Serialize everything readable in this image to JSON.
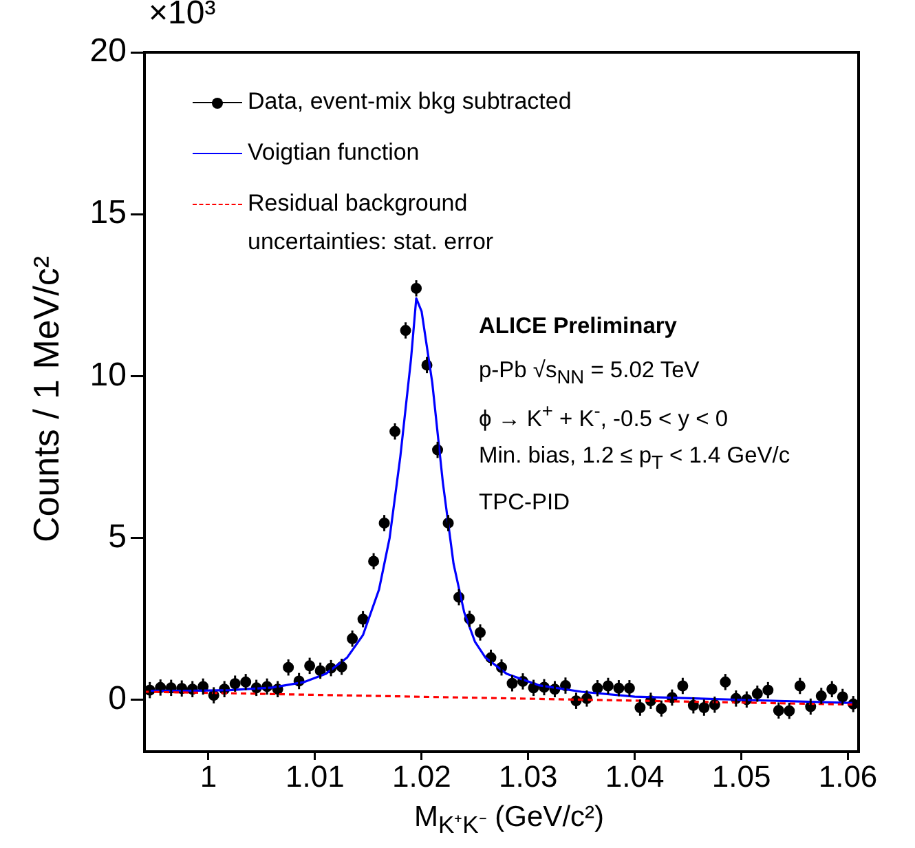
{
  "chart_data": {
    "type": "scatter",
    "xlabel": "M$_{K⁺K⁻}$ (GeV/c²)",
    "ylabel": "Counts / 1 MeV/c²",
    "xlim": [
      0.994,
      1.061
    ],
    "xticks": [
      1,
      1.01,
      1.02,
      1.03,
      1.04,
      1.05,
      1.06
    ],
    "ylim": [
      -1.6,
      20
    ],
    "yticks": [
      0,
      5,
      10,
      15,
      20
    ],
    "grid": false,
    "legend": "top left",
    "annotations": [
      "×10³",
      "uncertainties: stat. error",
      "ALICE Preliminary",
      "p-Pb √s$_{NN}$ = 5.02 TeV",
      "ϕ → K$^{+}$ + K$^{-}$, -0.5 < y < 0",
      "Min. bias, 1.2 ≤ p$_{T}$ < 1.4 GeV/c",
      "TPC-PID"
    ],
    "series": [
      {
        "name": "Data, event-mix bkg subtracted",
        "color": "#000000",
        "marker": "circle",
        "x": [
          0.9945,
          0.9955,
          0.9965,
          0.9975,
          0.9985,
          0.9995,
          1.0005,
          1.0015,
          1.0025,
          1.0035,
          1.0045,
          1.0055,
          1.0065,
          1.0075,
          1.0085,
          1.0095,
          1.0105,
          1.0115,
          1.0125,
          1.0135,
          1.0145,
          1.0155,
          1.0165,
          1.0175,
          1.0185,
          1.0195,
          1.0205,
          1.0215,
          1.0225,
          1.0235,
          1.0245,
          1.0255,
          1.0265,
          1.0275,
          1.0285,
          1.0295,
          1.0305,
          1.0315,
          1.0325,
          1.0335,
          1.0345,
          1.0355,
          1.0365,
          1.0375,
          1.0385,
          1.0395,
          1.0405,
          1.0415,
          1.0425,
          1.0435,
          1.0445,
          1.0455,
          1.0465,
          1.0475,
          1.0485,
          1.0495,
          1.0505,
          1.0515,
          1.0525,
          1.0535,
          1.0545,
          1.0555,
          1.0565,
          1.0575,
          1.0585,
          1.0595,
          1.0605
        ],
        "values": [
          0.3,
          0.38,
          0.37,
          0.35,
          0.33,
          0.41,
          0.14,
          0.33,
          0.5,
          0.55,
          0.37,
          0.41,
          0.33,
          1.0,
          0.58,
          1.05,
          0.9,
          0.98,
          1.02,
          1.89,
          2.49,
          4.28,
          5.46,
          8.29,
          11.41,
          12.71,
          10.34,
          7.72,
          5.46,
          3.17,
          2.5,
          2.08,
          1.3,
          1.0,
          0.51,
          0.57,
          0.37,
          0.39,
          0.33,
          0.44,
          -0.03,
          0.04,
          0.36,
          0.43,
          0.36,
          0.36,
          -0.24,
          -0.03,
          -0.27,
          0.07,
          0.43,
          -0.17,
          -0.24,
          -0.15,
          0.55,
          0.04,
          0.01,
          0.19,
          0.3,
          -0.33,
          -0.34,
          0.43,
          -0.21,
          0.12,
          0.33,
          0.09,
          -0.13
        ],
        "errors": [
          0.25,
          0.25,
          0.25,
          0.25,
          0.25,
          0.25,
          0.25,
          0.25,
          0.25,
          0.25,
          0.25,
          0.25,
          0.25,
          0.25,
          0.25,
          0.25,
          0.25,
          0.25,
          0.25,
          0.25,
          0.25,
          0.25,
          0.25,
          0.25,
          0.25,
          0.25,
          0.25,
          0.25,
          0.25,
          0.25,
          0.25,
          0.25,
          0.25,
          0.25,
          0.25,
          0.25,
          0.25,
          0.25,
          0.25,
          0.25,
          0.25,
          0.25,
          0.25,
          0.25,
          0.25,
          0.25,
          0.25,
          0.25,
          0.25,
          0.25,
          0.25,
          0.25,
          0.25,
          0.25,
          0.25,
          0.25,
          0.25,
          0.25,
          0.25,
          0.25,
          0.25,
          0.25,
          0.25,
          0.25,
          0.25,
          0.25,
          0.25
        ]
      },
      {
        "name": "Voigtian function",
        "type": "line",
        "color": "#0000ff",
        "marker": "none",
        "line_style": "solid",
        "x": [
          0.9945,
          0.998,
          1.002,
          1.006,
          1.009,
          1.011,
          1.013,
          1.0145,
          1.016,
          1.017,
          1.018,
          1.019,
          1.0195,
          1.02,
          1.021,
          1.022,
          1.023,
          1.024,
          1.025,
          1.026,
          1.028,
          1.031,
          1.035,
          1.04,
          1.05,
          1.0605
        ],
        "values": [
          0.28,
          0.28,
          0.3,
          0.38,
          0.55,
          0.8,
          1.3,
          2.0,
          3.4,
          5.0,
          7.5,
          10.5,
          12.4,
          12.0,
          9.8,
          6.7,
          4.2,
          2.7,
          1.8,
          1.3,
          0.8,
          0.45,
          0.25,
          0.1,
          0.0,
          -0.1
        ]
      },
      {
        "name": "Residual background",
        "type": "line",
        "color": "#ff0000",
        "marker": "none",
        "line_style": "dashed",
        "x": [
          0.994,
          1.061
        ],
        "values": [
          0.25,
          -0.15
        ]
      }
    ]
  }
}
